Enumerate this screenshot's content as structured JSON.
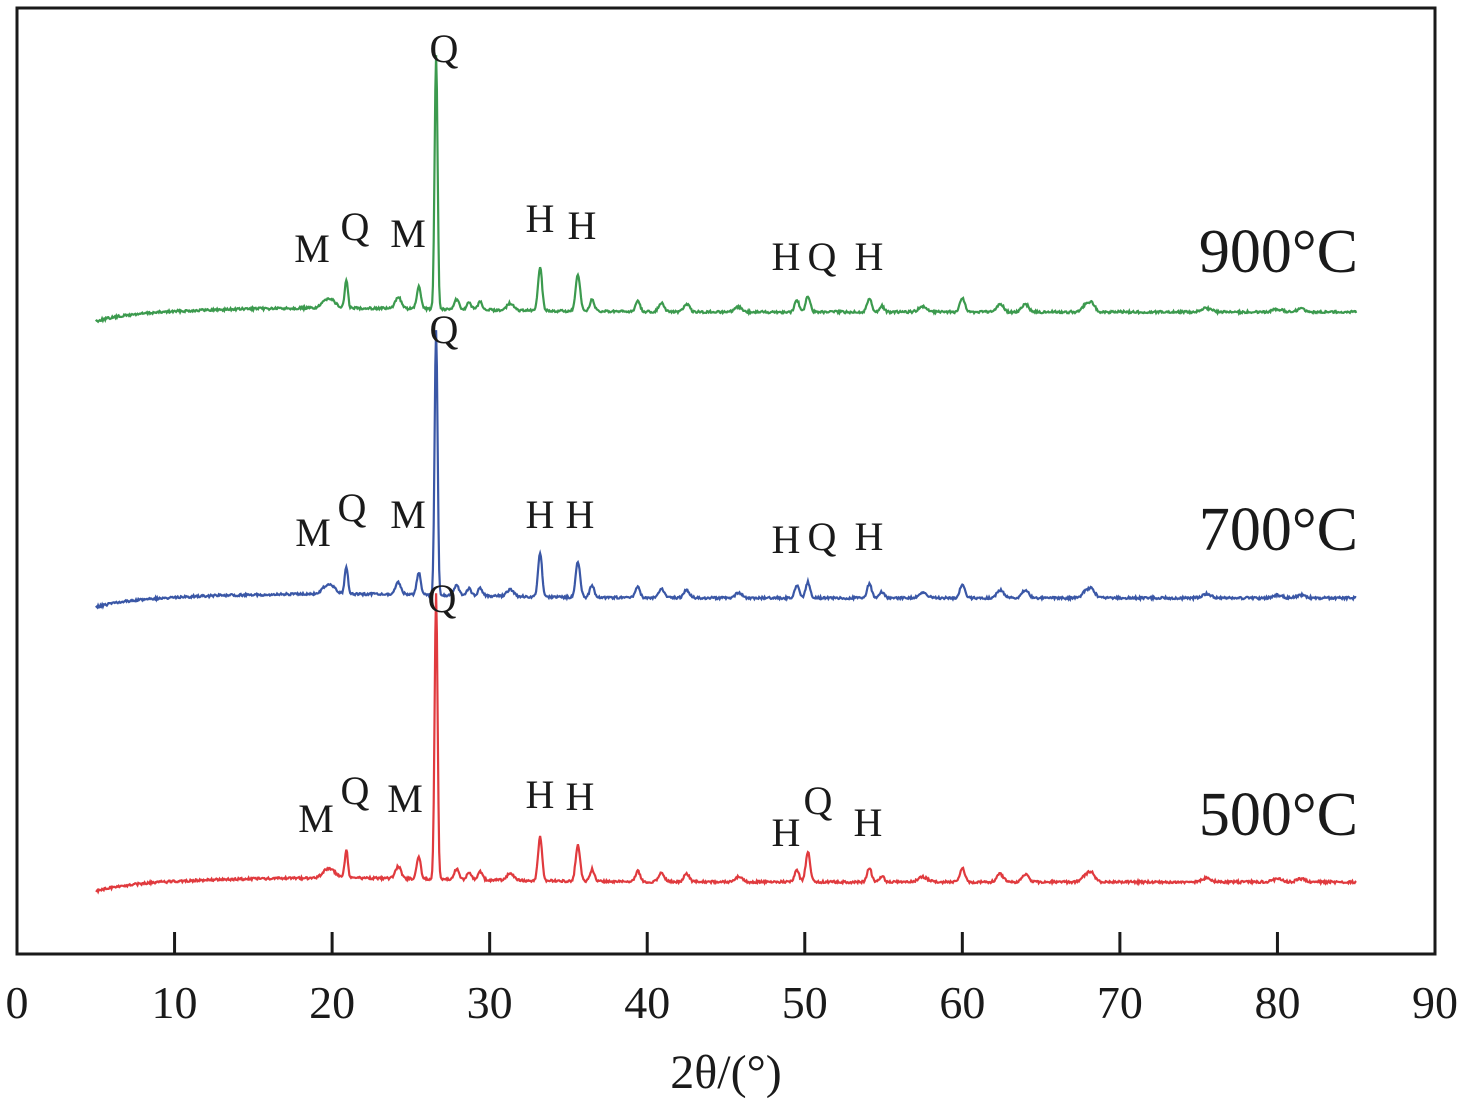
{
  "chart_data": {
    "type": "line",
    "title": "",
    "xlabel": "2θ/(°)",
    "ylabel": "",
    "xlim": [
      0,
      90
    ],
    "xticks": [
      0,
      10,
      20,
      30,
      40,
      50,
      60,
      70,
      80,
      90
    ],
    "y_axis": "no ticks; traces vertically offset",
    "grid": false,
    "legend": "labels at right end of each trace",
    "phase_codes": [
      "M",
      "Q",
      "H"
    ],
    "series": [
      {
        "name": "900°C",
        "color": "#3c9a4e",
        "peaks": [
          {
            "x": 19.8,
            "label": "M"
          },
          {
            "x": 20.9,
            "label": "Q"
          },
          {
            "x": 25.5,
            "label": "M"
          },
          {
            "x": 26.6,
            "label": "Q"
          },
          {
            "x": 33.2,
            "label": "H"
          },
          {
            "x": 35.6,
            "label": "H"
          },
          {
            "x": 49.5,
            "label": "H"
          },
          {
            "x": 50.2,
            "label": "Q"
          },
          {
            "x": 54.1,
            "label": "H"
          }
        ]
      },
      {
        "name": "700°C",
        "color": "#3a57a6",
        "peaks": [
          {
            "x": 19.8,
            "label": "M"
          },
          {
            "x": 20.9,
            "label": "Q"
          },
          {
            "x": 25.5,
            "label": "M"
          },
          {
            "x": 26.6,
            "label": "Q"
          },
          {
            "x": 33.2,
            "label": "H"
          },
          {
            "x": 35.6,
            "label": "H"
          },
          {
            "x": 49.5,
            "label": "H"
          },
          {
            "x": 50.2,
            "label": "Q"
          },
          {
            "x": 54.1,
            "label": "H"
          }
        ]
      },
      {
        "name": "500°C",
        "color": "#e03a3e",
        "peaks": [
          {
            "x": 19.8,
            "label": "M"
          },
          {
            "x": 20.9,
            "label": "Q"
          },
          {
            "x": 25.5,
            "label": "M"
          },
          {
            "x": 26.6,
            "label": "Q"
          },
          {
            "x": 33.2,
            "label": "H"
          },
          {
            "x": 35.6,
            "label": "H"
          },
          {
            "x": 49.5,
            "label": "H"
          },
          {
            "x": 50.2,
            "label": "Q"
          },
          {
            "x": 54.1,
            "label": "H"
          }
        ]
      }
    ]
  }
}
